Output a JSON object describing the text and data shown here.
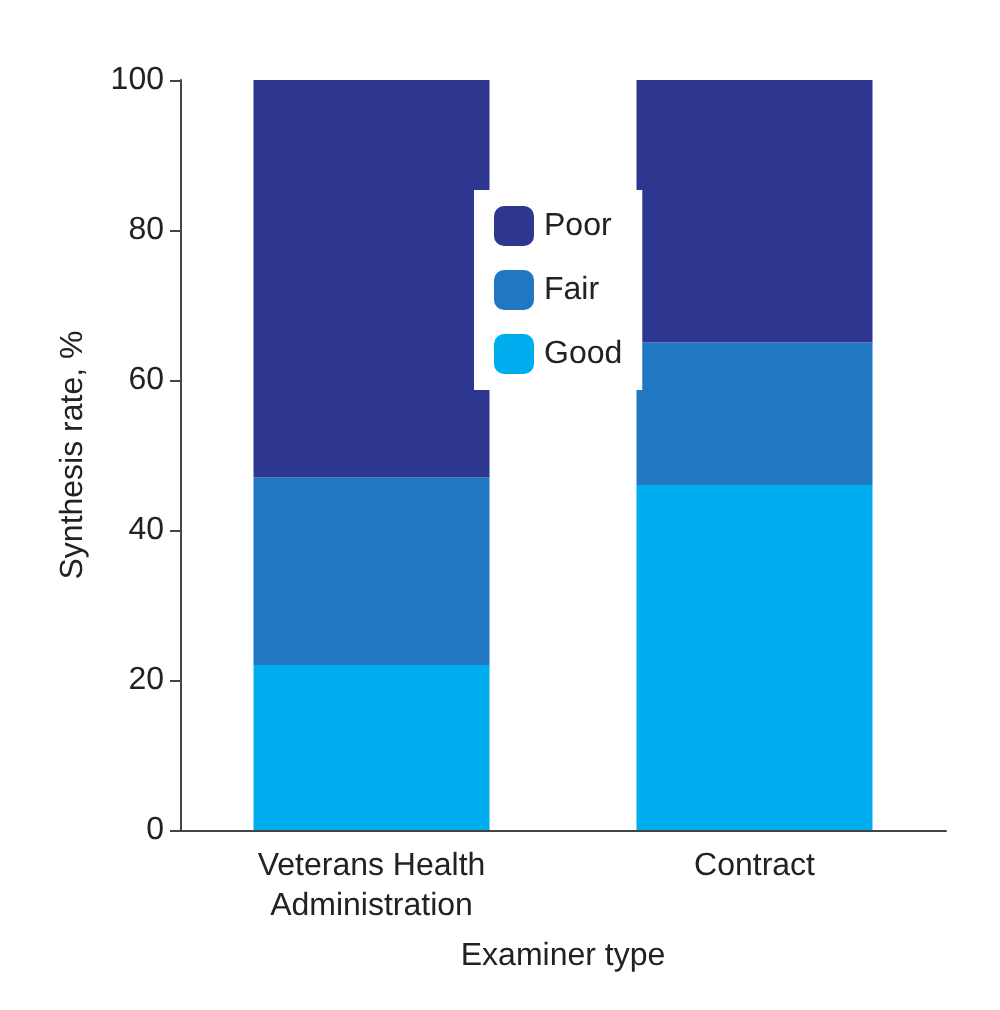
{
  "chart_data": {
    "type": "bar",
    "stacked": true,
    "xlabel": "Examiner type",
    "ylabel": "Synthesis rate, %",
    "categories": [
      "Veterans Health\nAdministration",
      "Contract"
    ],
    "series": [
      {
        "name": "Good",
        "color": "#00aeef",
        "values": [
          22,
          46
        ]
      },
      {
        "name": "Fair",
        "color": "#1f78c1",
        "values": [
          25,
          19
        ]
      },
      {
        "name": "Poor",
        "color": "#2e3790",
        "values": [
          53,
          35
        ]
      }
    ],
    "ylim": [
      0,
      100
    ],
    "yticks": [
      0,
      20,
      40,
      60,
      80,
      100
    ],
    "grid": false,
    "legend": "top"
  }
}
